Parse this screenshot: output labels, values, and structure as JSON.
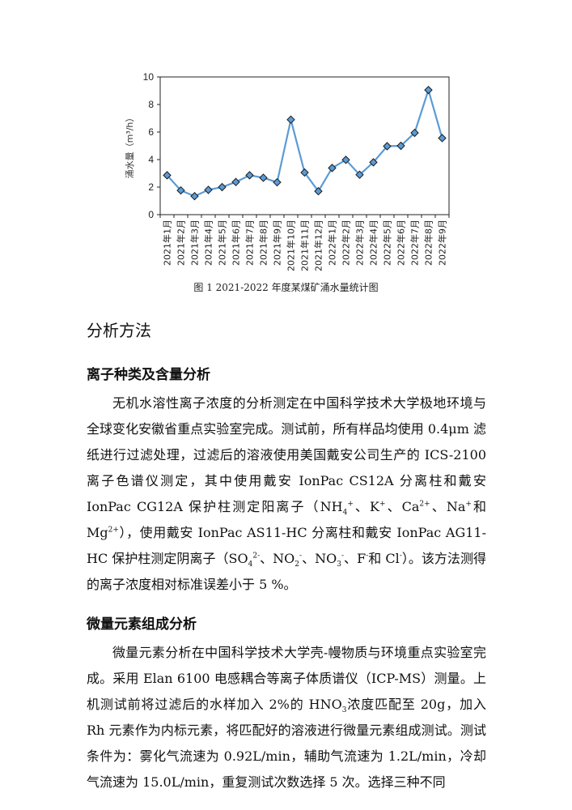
{
  "chart_data": {
    "type": "line",
    "title": "",
    "xlabel": "",
    "ylabel": "涌水量（m³/h）",
    "ylim": [
      0,
      10
    ],
    "yticks": [
      0,
      2,
      4,
      6,
      8,
      10
    ],
    "grid": false,
    "marker": "diamond",
    "line_color": "#5B9BD5",
    "marker_color": "#5B9BD5",
    "categories": [
      "2021年1月",
      "2021年2月",
      "2021年3月",
      "2021年4月",
      "2021年5月",
      "2021年6月",
      "2021年7月",
      "2021年8月",
      "2021年9月",
      "2021年10月",
      "2021年11月",
      "2021年12月",
      "2022年1月",
      "2022年2月",
      "2022年3月",
      "2022年4月",
      "2022年5月",
      "2022年6月",
      "2022年7月",
      "2022年8月",
      "2022年9月"
    ],
    "values": [
      2.86,
      1.76,
      1.34,
      1.8,
      2.0,
      2.37,
      2.86,
      2.68,
      2.35,
      6.9,
      3.06,
      1.7,
      3.39,
      3.98,
      2.9,
      3.8,
      4.97,
      5.0,
      5.94,
      9.05,
      5.56
    ]
  },
  "caption": "图 1 2021-2022 年度某煤矿涌水量统计图",
  "section_title": "分析方法",
  "subsections": [
    {
      "title": "离子种类及含量分析",
      "paragraph": [
        {
          "t": "无机水溶性离子浓度的分析测定在中国科学技术大学极地环境与全球变化安徽省重点实验室完成。测试前，所有样品均使用 0.4μm 滤纸进行过滤处理，过滤后的溶液使用美国戴安公司生产的 ICS-2100 离子色谱仪测定，其中使用戴安 IonPac CS12A 分离柱和戴安 IonPac CG12A 保护柱测定阳离子（NH"
        },
        {
          "sub": "4"
        },
        {
          "sup": "+"
        },
        {
          "t": "、K"
        },
        {
          "sup": "+"
        },
        {
          "t": "、Ca"
        },
        {
          "sup": "2+"
        },
        {
          "t": "、Na"
        },
        {
          "sup": "+"
        },
        {
          "t": "和 Mg"
        },
        {
          "sup": "2+"
        },
        {
          "t": "），使用戴安 IonPac AS11-HC 分离柱和戴安 IonPac AG11-HC 保护柱测定阴离子（SO"
        },
        {
          "sub": "4"
        },
        {
          "sup": "2-"
        },
        {
          "t": "、NO"
        },
        {
          "sub": "2"
        },
        {
          "sup": "-"
        },
        {
          "t": "、NO"
        },
        {
          "sub": "3"
        },
        {
          "sup": "-"
        },
        {
          "t": "、F"
        },
        {
          "sup": "-"
        },
        {
          "t": "和 Cl"
        },
        {
          "sup": "-"
        },
        {
          "t": "）。该方法测得的离子浓度相对标准误差小于 5 %。"
        }
      ]
    },
    {
      "title": "微量元素组成分析",
      "paragraph": [
        {
          "t": "微量元素分析在中国科学技术大学壳-幔物质与环境重点实验室完成。采用 Elan 6100 电感耦合等离子体质谱仪（ICP-MS）测量。上机测试前将过滤后的水样加入 2%的 HNO"
        },
        {
          "sub": "3"
        },
        {
          "t": "浓度匹配至 20g，加入 Rh 元素作为内标元素，将匹配好的溶液进行微量元素组成测试。测试条件为：雾化气流速为 0.92L/min，辅助气流速为 1.2L/min，冷却气流速为 15.0L/min，重复测试次数选择 5 次。选择三种不同"
        }
      ]
    }
  ]
}
